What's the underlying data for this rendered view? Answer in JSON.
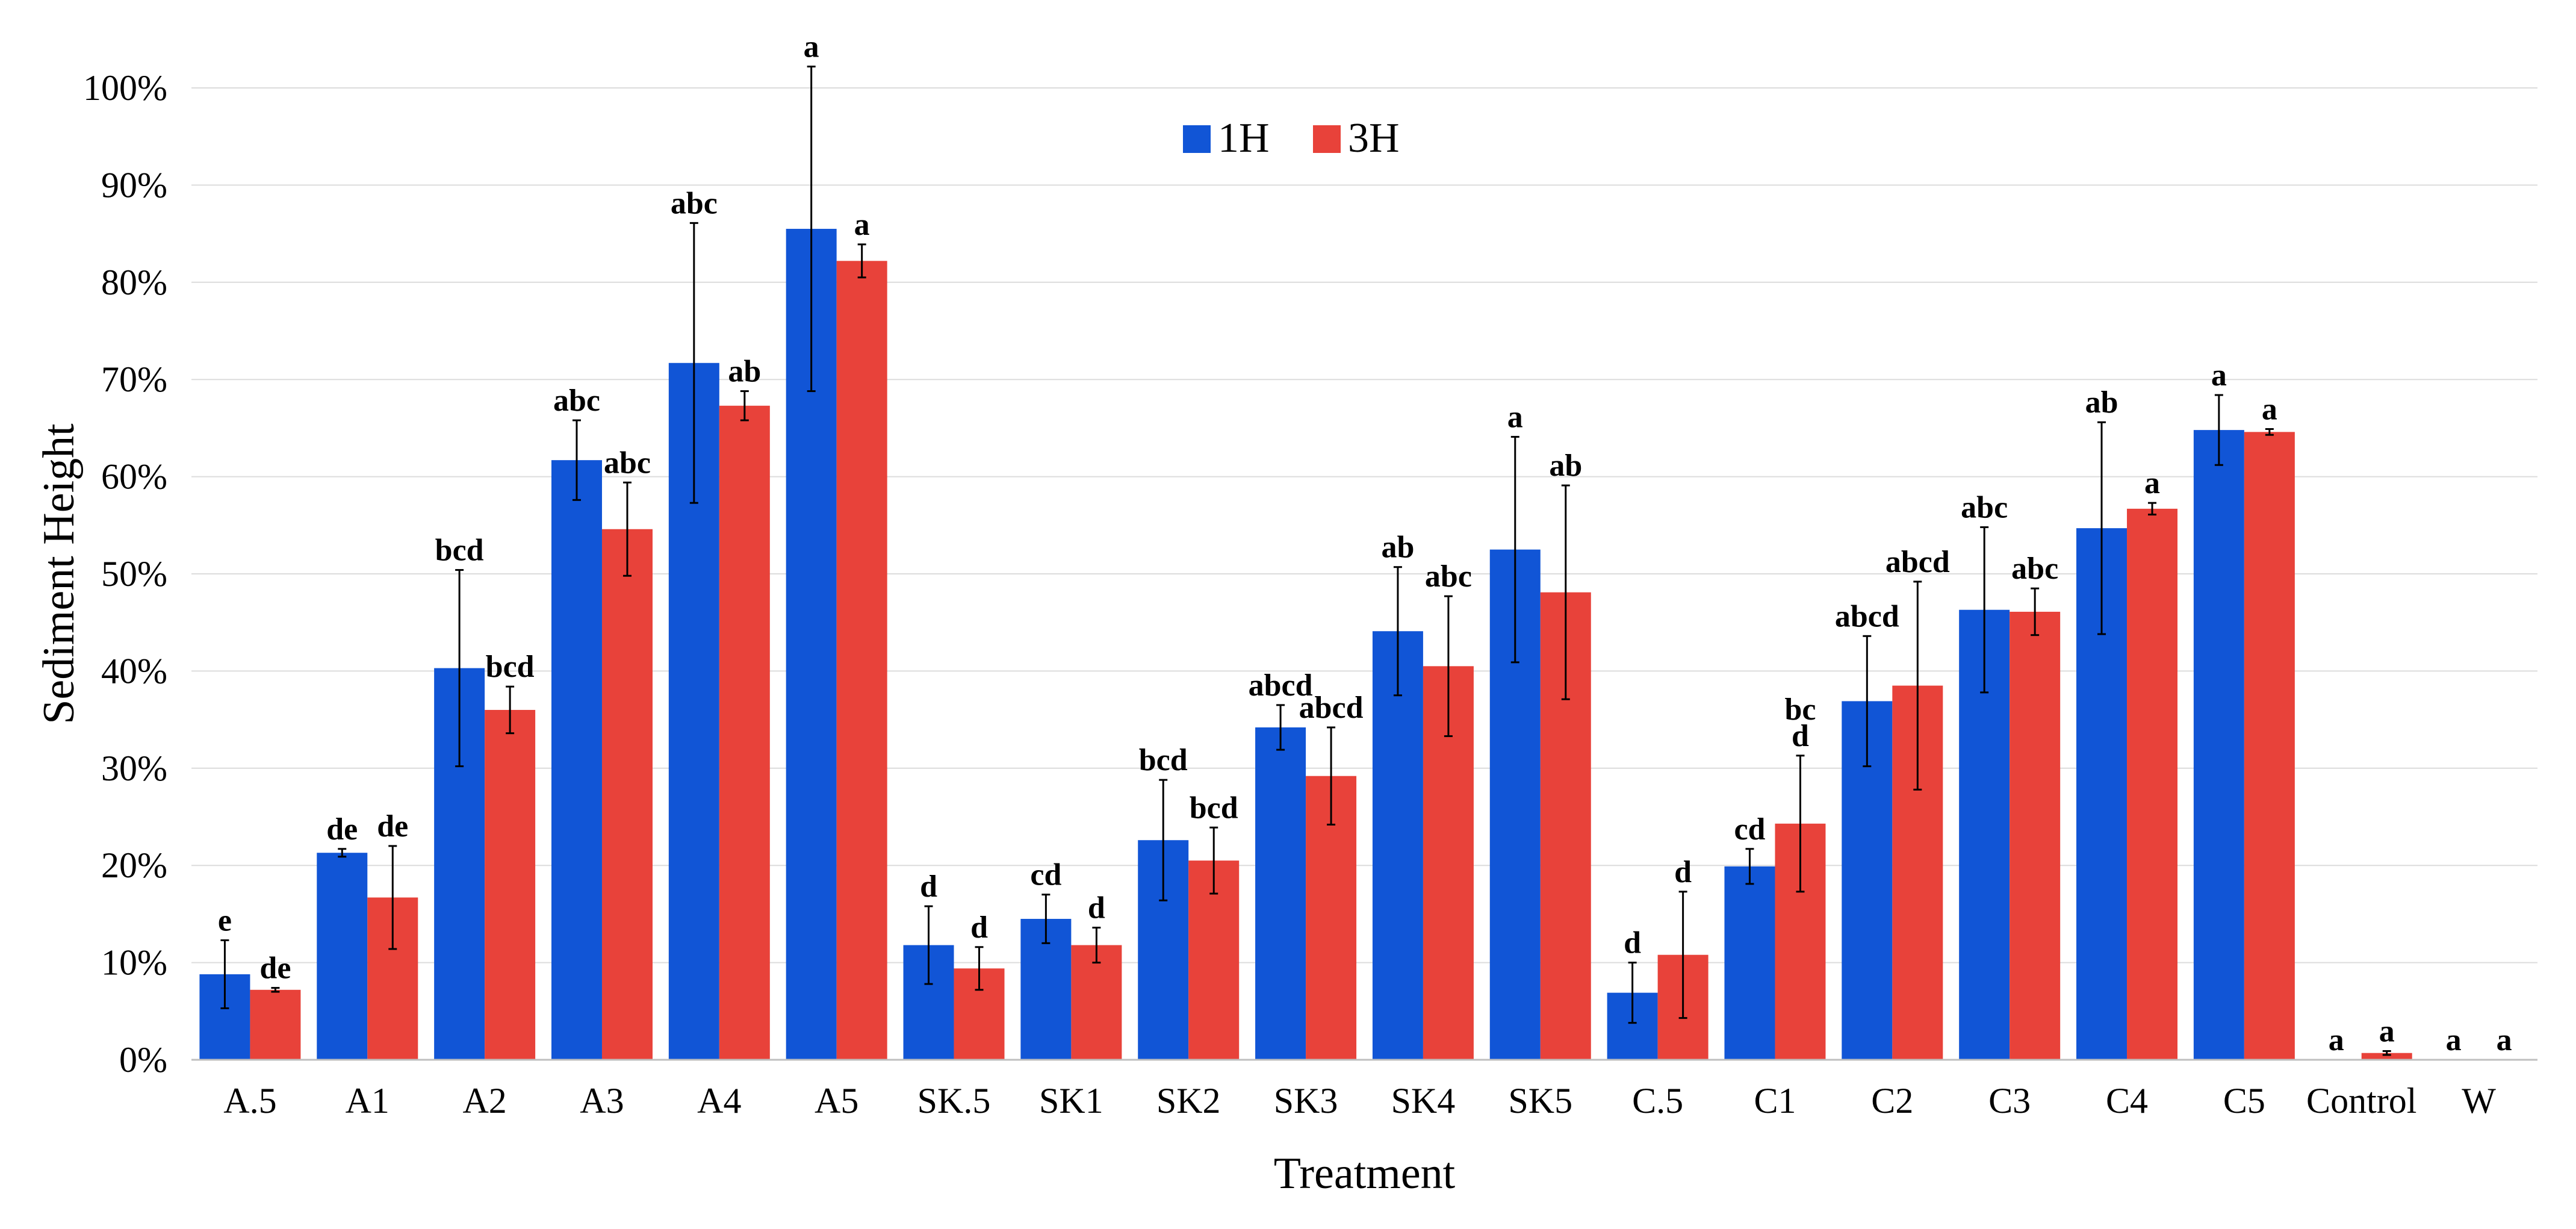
{
  "chart_data": {
    "type": "bar",
    "xlabel": "Treatment",
    "ylabel": "Sediment Height",
    "ylim": [
      0,
      100
    ],
    "y_ticks": [
      "0%",
      "10%",
      "20%",
      "30%",
      "40%",
      "50%",
      "60%",
      "70%",
      "80%",
      "90%",
      "100%"
    ],
    "grid": true,
    "legend_position": "top-center",
    "categories": [
      "A.5",
      "A1",
      "A2",
      "A3",
      "A4",
      "A5",
      "SK.5",
      "SK1",
      "SK2",
      "SK3",
      "SK4",
      "SK5",
      "C.5",
      "C1",
      "C2",
      "C3",
      "C4",
      "C5",
      "Control",
      "W"
    ],
    "series": [
      {
        "name": "1H",
        "color": "#1155d6",
        "values": [
          8.8,
          21.3,
          40.3,
          61.7,
          71.7,
          85.5,
          11.8,
          14.5,
          22.6,
          34.2,
          44.1,
          52.5,
          6.9,
          19.9,
          36.9,
          46.3,
          54.7,
          64.8,
          0,
          0
        ],
        "errors": [
          3.5,
          0.4,
          10.1,
          4.1,
          14.4,
          16.7,
          4.0,
          2.5,
          6.2,
          2.3,
          6.6,
          11.6,
          3.1,
          1.8,
          6.7,
          8.5,
          10.9,
          3.6,
          0,
          0
        ],
        "labels": [
          "e",
          "de",
          "bcd",
          "abc",
          "abc",
          "a",
          "d",
          "cd",
          "bcd",
          "abcd",
          "ab",
          "a",
          "d",
          "cd",
          "abcd",
          "abc",
          "ab",
          "a",
          "a",
          "a"
        ]
      },
      {
        "name": "3H",
        "color": "#e8423a",
        "values": [
          7.2,
          16.7,
          36.0,
          54.6,
          67.3,
          82.2,
          9.4,
          11.8,
          20.5,
          29.2,
          40.5,
          48.1,
          10.8,
          24.3,
          38.5,
          46.1,
          56.7,
          64.6,
          0.7,
          0
        ],
        "errors": [
          0.2,
          5.3,
          2.4,
          4.8,
          1.5,
          1.7,
          2.2,
          1.8,
          3.4,
          5.0,
          7.2,
          11.0,
          6.5,
          7.0,
          10.7,
          2.4,
          0.6,
          0.3,
          0.2,
          0
        ],
        "labels": [
          "de",
          "de",
          "bcd",
          "abc",
          "ab",
          "a",
          "d",
          "d",
          "bcd",
          "abcd",
          "abc",
          "ab",
          "d",
          "bc d",
          "abcd",
          "abc",
          "a",
          "a",
          "a",
          "a"
        ]
      }
    ]
  }
}
